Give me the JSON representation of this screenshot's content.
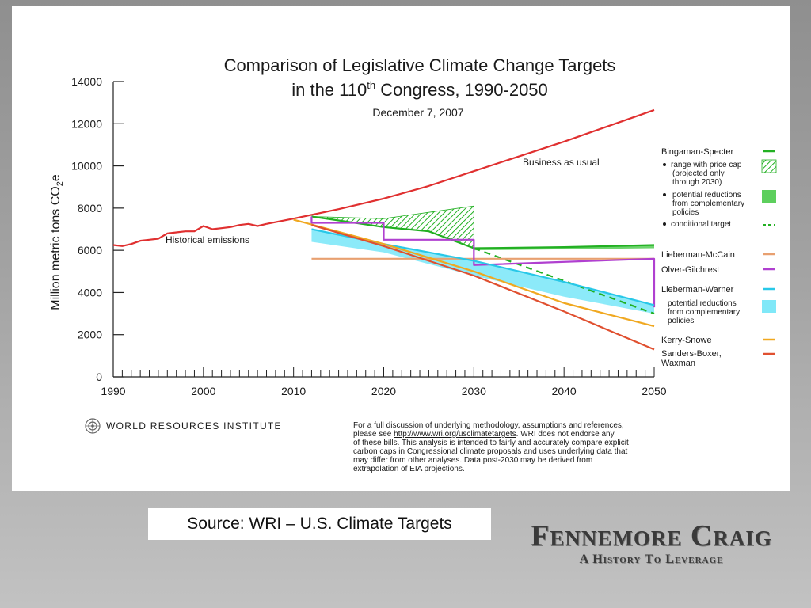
{
  "chart_data": {
    "type": "line",
    "title_line1": "Comparison of Legislative Climate Change Targets",
    "title_line2_prefix": "in the 110",
    "title_line2_sup": "th",
    "title_line2_suffix": " Congress, 1990-2050",
    "subtitle": "December 7, 2007",
    "ylabel": "Million metric tons CO",
    "ylabel_sub": "2",
    "ylabel_tail": "e",
    "xlim": [
      1990,
      2050
    ],
    "ylim": [
      0,
      14000
    ],
    "x_ticks": [
      1990,
      2000,
      2010,
      2020,
      2030,
      2040,
      2050
    ],
    "y_ticks": [
      0,
      2000,
      4000,
      6000,
      8000,
      10000,
      12000,
      14000
    ],
    "annotations": {
      "historical": "Historical emissions",
      "business": "Business as usual"
    },
    "series": [
      {
        "name": "Historical emissions",
        "color": "#e03030",
        "x": [
          1990,
          1991,
          1992,
          1993,
          1994,
          1995,
          1996,
          1997,
          1998,
          1999,
          2000,
          2001,
          2002,
          2003,
          2004,
          2005,
          2006,
          2007
        ],
        "y": [
          6250,
          6200,
          6300,
          6450,
          6500,
          6550,
          6800,
          6850,
          6900,
          6900,
          7150,
          7000,
          7050,
          7100,
          7200,
          7250,
          7150,
          7250
        ]
      },
      {
        "name": "Business as usual",
        "color": "#e03030",
        "x": [
          2007,
          2010,
          2015,
          2020,
          2025,
          2030,
          2035,
          2040,
          2045,
          2050
        ],
        "y": [
          7250,
          7500,
          7950,
          8450,
          9050,
          9750,
          10450,
          11150,
          11900,
          12650
        ]
      },
      {
        "name": "Bingaman-Specter",
        "color": "#22b022",
        "x": [
          2012,
          2020,
          2025,
          2030,
          2040,
          2050
        ],
        "y": [
          7600,
          7100,
          6900,
          6100,
          6150,
          6250
        ]
      },
      {
        "name": "Bingaman-Specter conditional target",
        "color": "#22b022",
        "dashed": true,
        "x": [
          2030,
          2050
        ],
        "y": [
          6100,
          3000
        ]
      },
      {
        "name": "Lieberman-McCain",
        "color": "#e8a070",
        "x": [
          2012,
          2050
        ],
        "y": [
          5600,
          5600
        ]
      },
      {
        "name": "Olver-Gilchrest",
        "color": "#b040d0",
        "x": [
          2012,
          2012,
          2020,
          2020,
          2030,
          2030,
          2050,
          2050
        ],
        "y": [
          7600,
          7300,
          7300,
          6500,
          6500,
          5300,
          5600,
          3300
        ]
      },
      {
        "name": "Lieberman-Warner",
        "color": "#28c8e8",
        "x": [
          2012,
          2020,
          2030,
          2040,
          2050
        ],
        "y": [
          7000,
          6300,
          5500,
          4500,
          3400
        ]
      },
      {
        "name": "Kerry-Snowe",
        "color": "#f0a820",
        "x": [
          2010,
          2020,
          2030,
          2040,
          2050
        ],
        "y": [
          7450,
          6300,
          5000,
          3500,
          2400
        ]
      },
      {
        "name": "Sanders-Boxer, Waxman",
        "color": "#e05030",
        "x": [
          2012,
          2020,
          2030,
          2040,
          2050
        ],
        "y": [
          7200,
          6200,
          4800,
          3100,
          1300
        ]
      }
    ],
    "bands": [
      {
        "name": "range with price cap",
        "color": "#22b022",
        "hatched": true,
        "x": [
          2012,
          2020,
          2025,
          2030
        ],
        "y_low": [
          7600,
          7100,
          6900,
          6100
        ],
        "y_high": [
          7600,
          7500,
          7800,
          8100
        ]
      },
      {
        "name": "potential reductions from complementary policies (Bingaman-Specter)",
        "color": "#5dcf5d",
        "x": [
          2030,
          2050
        ],
        "y_low": [
          6000,
          6100
        ],
        "y_high": [
          6100,
          6250
        ]
      },
      {
        "name": "potential reductions from complementary policies (Lieberman-Warner)",
        "color": "#80e8f8",
        "x": [
          2012,
          2020,
          2030,
          2040,
          2050
        ],
        "y_low": [
          6400,
          5900,
          4800,
          3800,
          3000
        ],
        "y_high": [
          7000,
          6300,
          5500,
          4500,
          3400
        ]
      }
    ]
  },
  "legend": {
    "bingaman": "Bingaman-Specter",
    "price_cap": "range with price cap",
    "price_cap_2": "(projected only",
    "price_cap_3": "through 2030)",
    "potential_1": "potential reductions",
    "potential_2": "from complementary",
    "potential_3": "policies",
    "conditional": "conditional target",
    "mccain": "Lieberman-McCain",
    "olver": "Olver-Gilchrest",
    "warner": "Lieberman-Warner",
    "lw_potential_1": "potential reductions",
    "lw_potential_2": "from complementary",
    "lw_potential_3": "policies",
    "kerry": "Kerry-Snowe",
    "sanders_1": "Sanders-Boxer,",
    "sanders_2": "Waxman"
  },
  "footer": {
    "org": "WORLD RESOURCES INSTITUTE",
    "note_1": "For a full discussion of underlying methodology, assumptions and references,",
    "note_2a": "please see ",
    "note_2_link": "http://www.wri.org/usclimatetargets",
    "note_2b": ". WRI does not endorse any",
    "note_3": "of these bills. This analysis is intended to fairly and accurately compare explicit",
    "note_4": "carbon caps in Congressional climate proposals and uses underlying data that",
    "note_5": "may differ from other analyses. Data post-2030 may be derived from",
    "note_6": "extrapolation of EIA projections."
  },
  "source": "Source: WRI – U.S. Climate Targets",
  "logo": {
    "name": "Fennemore Craig",
    "tagline": "A History To Leverage"
  }
}
